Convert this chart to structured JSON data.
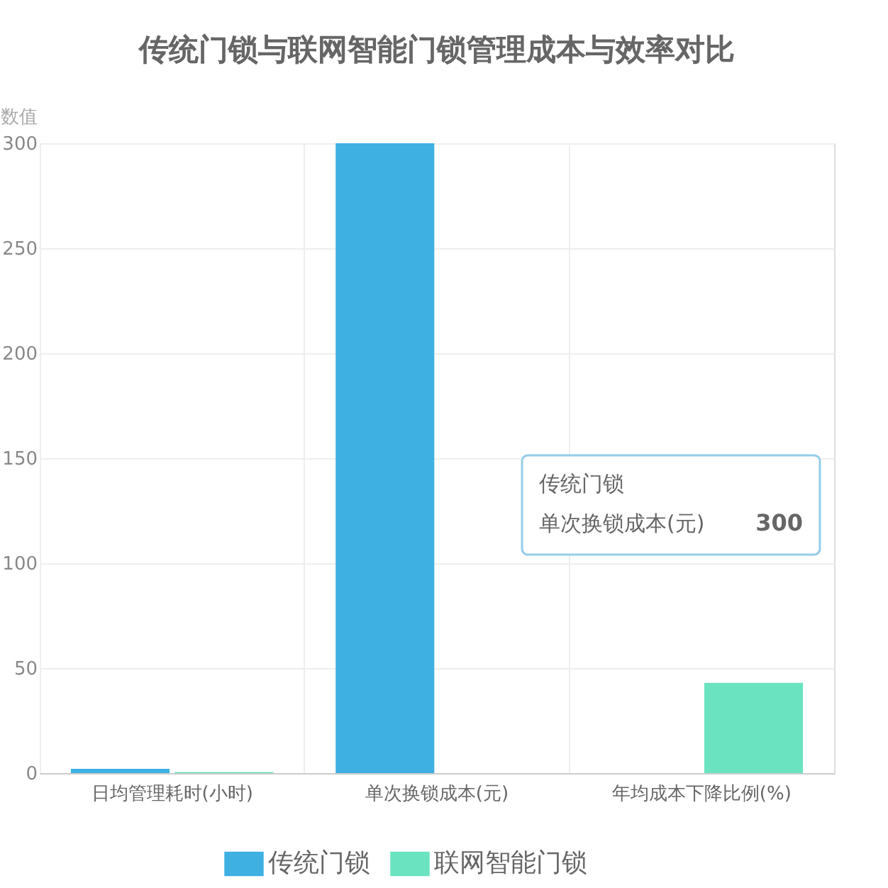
{
  "chart_data": {
    "type": "bar",
    "title": "传统门锁与联网智能门锁管理成本与效率对比",
    "ylabel": "数值",
    "categories": [
      "日均管理耗时(小时)",
      "单次换锁成本(元)",
      "年均成本下降比例(%)"
    ],
    "series": [
      {
        "name": "传统门锁",
        "color": "#3eb0e2",
        "values": [
          2,
          300,
          null
        ]
      },
      {
        "name": "联网智能门锁",
        "color": "#6ae3c0",
        "values": [
          0.5,
          null,
          43
        ]
      }
    ],
    "ylim": [
      0,
      300
    ],
    "yticks": [
      0,
      50,
      100,
      150,
      200,
      250,
      300
    ],
    "grid": true,
    "legend": "bottom",
    "annotations": [
      "传统门锁",
      "单次换锁成本(元)",
      "300"
    ]
  }
}
